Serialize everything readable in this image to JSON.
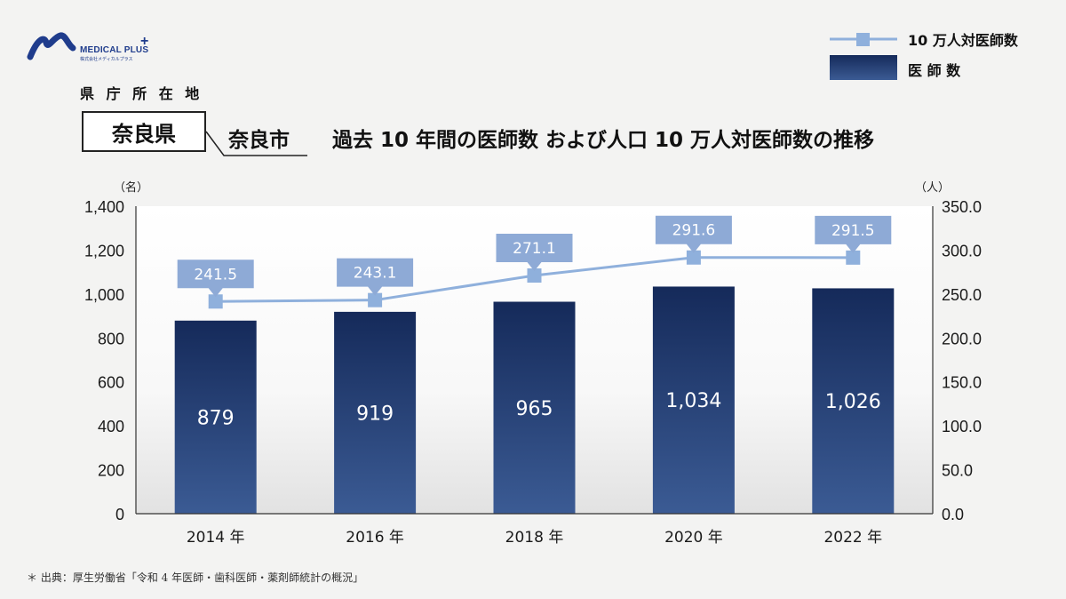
{
  "brand": {
    "name": "MEDICAL PLUS",
    "plus": "+",
    "sub": "株式会社メディカルプラス",
    "accent_color": "#1f3c8c"
  },
  "header": {
    "capital_label": "県 庁 所 在 地",
    "prefecture": "奈良県",
    "city": "奈良市",
    "title": "過去 10 年間の医師数 および人口 10 万人対医師数の推移"
  },
  "legend": {
    "line_label": "10 万人対医師数",
    "bar_label": "医 師 数"
  },
  "footer": {
    "source": "＊ 出典：厚生労働省「令和 4 年医師・歯科医師・薬剤師統計の概況」"
  },
  "colors": {
    "bar_top": "#152a5a",
    "bar_bottom": "#3b5b94",
    "line": "#8fb0dc",
    "callout": "#8eaad6"
  },
  "chart_data": {
    "type": "bar+line",
    "categories": [
      "2014 年",
      "2016 年",
      "2018 年",
      "2020 年",
      "2022 年"
    ],
    "series": [
      {
        "name": "医 師 数",
        "type": "bar",
        "axis": "left",
        "values": [
          879,
          919,
          965,
          1034,
          1026
        ],
        "labels": [
          "879",
          "919",
          "965",
          "1,034",
          "1,026"
        ]
      },
      {
        "name": "10 万人対医師数",
        "type": "line",
        "axis": "right",
        "values": [
          241.5,
          243.1,
          271.1,
          291.6,
          291.5
        ],
        "labels": [
          "241.5",
          "243.1",
          "271.1",
          "291.6",
          "291.5"
        ]
      }
    ],
    "y_left": {
      "unit": "（名）",
      "range": [
        0,
        1400
      ],
      "ticks": [
        "0",
        "200",
        "400",
        "600",
        "800",
        "1,000",
        "1,200",
        "1,400"
      ]
    },
    "y_right": {
      "unit": "（人）",
      "range": [
        0,
        350
      ],
      "ticks": [
        "0.0",
        "50.0",
        "100.0",
        "150.0",
        "200.0",
        "250.0",
        "300.0",
        "350.0"
      ]
    },
    "grid": false,
    "legend_position": "top-right"
  }
}
